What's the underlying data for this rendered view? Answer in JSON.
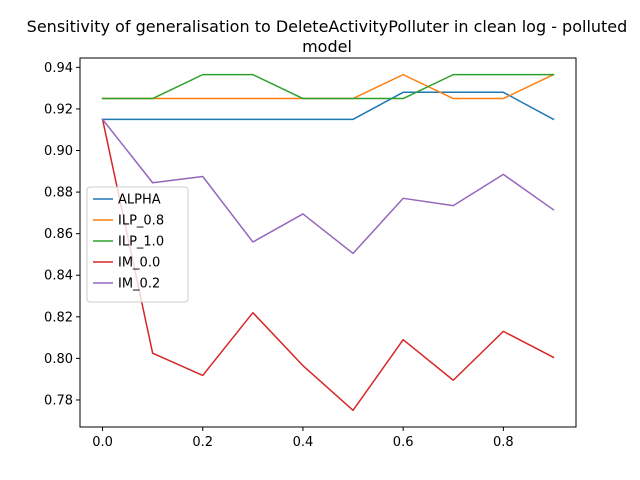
{
  "chart_data": {
    "type": "line",
    "title": "Sensitivity of generalisation to DeleteActivityPolluter in clean log - polluted model",
    "title_lines": [
      "Sensitivity of generalisation to DeleteActivityPolluter in clean log - polluted",
      "model"
    ],
    "xlabel": "",
    "ylabel": "",
    "xlim": [
      -0.045,
      0.945
    ],
    "ylim": [
      0.767,
      0.9445
    ],
    "xticks": [
      0.0,
      0.2,
      0.4,
      0.6,
      0.8
    ],
    "xtick_labels": [
      "0.0",
      "0.2",
      "0.4",
      "0.6",
      "0.8"
    ],
    "yticks": [
      0.78,
      0.8,
      0.82,
      0.84,
      0.86,
      0.88,
      0.9,
      0.92,
      0.94
    ],
    "ytick_labels": [
      "0.78",
      "0.80",
      "0.82",
      "0.84",
      "0.86",
      "0.88",
      "0.90",
      "0.92",
      "0.94"
    ],
    "grid": false,
    "legend_position": "center-left",
    "x": [
      0.0,
      0.1,
      0.2,
      0.3,
      0.4,
      0.5,
      0.6,
      0.7,
      0.8,
      0.9
    ],
    "series": [
      {
        "name": "ALPHA",
        "color": "#1f77b4",
        "values": [
          0.915,
          0.915,
          0.915,
          0.915,
          0.915,
          0.915,
          0.928,
          0.928,
          0.928,
          0.915
        ]
      },
      {
        "name": "ILP_0.8",
        "color": "#ff7f0e",
        "values": [
          0.925,
          0.925,
          0.925,
          0.925,
          0.925,
          0.925,
          0.9365,
          0.925,
          0.925,
          0.9365
        ]
      },
      {
        "name": "ILP_1.0",
        "color": "#2ca02c",
        "values": [
          0.925,
          0.925,
          0.9365,
          0.9365,
          0.925,
          0.925,
          0.925,
          0.9365,
          0.9365,
          0.9365
        ]
      },
      {
        "name": "IM_0.0",
        "color": "#d62728",
        "values": [
          0.915,
          0.8025,
          0.7918,
          0.822,
          0.7965,
          0.775,
          0.809,
          0.7895,
          0.813,
          0.8005
        ]
      },
      {
        "name": "IM_0.2",
        "color": "#9467bd",
        "values": [
          0.915,
          0.8845,
          0.8875,
          0.856,
          0.8695,
          0.8505,
          0.877,
          0.8735,
          0.8885,
          0.8715
        ]
      }
    ]
  }
}
